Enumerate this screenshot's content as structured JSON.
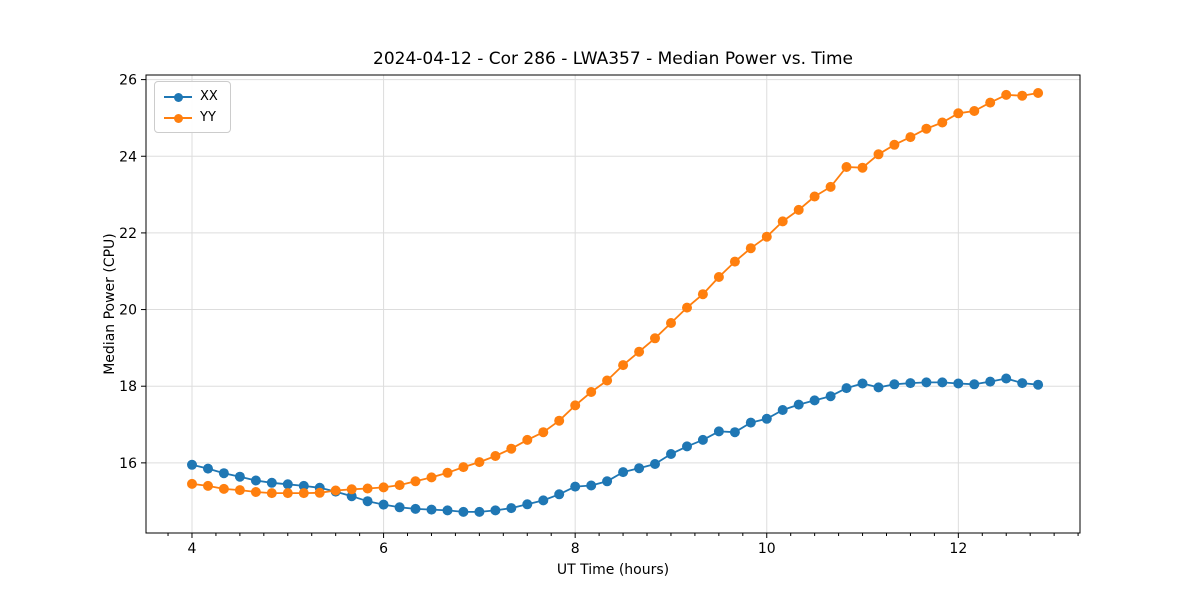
{
  "chart_data": {
    "type": "line",
    "title": "2024-04-12 - Cor 286 - LWA357 - Median Power vs. Time",
    "xlabel": "UT Time (hours)",
    "ylabel": "Median Power (CPU)",
    "xlim": [
      3.52,
      13.27
    ],
    "ylim": [
      14.17,
      26.12
    ],
    "xticks": [
      4,
      6,
      8,
      10,
      12
    ],
    "yticks": [
      16,
      18,
      20,
      22,
      24,
      26
    ],
    "x_minor_step": 0.25,
    "grid": true,
    "legend_position": "upper left",
    "background_color": "#ffffff",
    "grid_color": "#dddddd",
    "spine_color": "#000000",
    "x": [
      4.0,
      4.167,
      4.333,
      4.5,
      4.667,
      4.833,
      5.0,
      5.167,
      5.333,
      5.5,
      5.667,
      5.833,
      6.0,
      6.167,
      6.333,
      6.5,
      6.667,
      6.833,
      7.0,
      7.167,
      7.333,
      7.5,
      7.667,
      7.833,
      8.0,
      8.167,
      8.333,
      8.5,
      8.667,
      8.833,
      9.0,
      9.167,
      9.333,
      9.5,
      9.667,
      9.833,
      10.0,
      10.167,
      10.333,
      10.5,
      10.667,
      10.833,
      11.0,
      11.167,
      11.333,
      11.5,
      11.667,
      11.833,
      12.0,
      12.167,
      12.333,
      12.5,
      12.667,
      12.833
    ],
    "series": [
      {
        "name": "XX",
        "color": "#1f77b4",
        "values": [
          15.95,
          15.85,
          15.73,
          15.64,
          15.54,
          15.48,
          15.44,
          15.4,
          15.35,
          15.25,
          15.13,
          15.0,
          14.91,
          14.84,
          14.8,
          14.78,
          14.76,
          14.72,
          14.72,
          14.76,
          14.82,
          14.92,
          15.02,
          15.18,
          15.38,
          15.41,
          15.52,
          15.76,
          15.86,
          15.97,
          16.23,
          16.43,
          16.6,
          16.82,
          16.8,
          17.05,
          17.15,
          17.38,
          17.52,
          17.63,
          17.74,
          17.95,
          18.07,
          17.97,
          18.05,
          18.08,
          18.1,
          18.1,
          18.07,
          18.05,
          18.12,
          18.2,
          18.08,
          18.04
        ]
      },
      {
        "name": "YY",
        "color": "#ff7f0e",
        "values": [
          15.45,
          15.4,
          15.32,
          15.29,
          15.24,
          15.21,
          15.21,
          15.21,
          15.22,
          15.28,
          15.31,
          15.33,
          15.36,
          15.42,
          15.52,
          15.62,
          15.74,
          15.89,
          16.02,
          16.18,
          16.37,
          16.6,
          16.8,
          17.1,
          17.5,
          17.85,
          18.15,
          18.55,
          18.9,
          19.25,
          19.65,
          20.05,
          20.4,
          20.85,
          21.25,
          21.6,
          21.9,
          22.3,
          22.6,
          22.95,
          23.2,
          23.72,
          23.7,
          24.05,
          24.3,
          24.5,
          24.72,
          24.88,
          25.12,
          25.18,
          25.4,
          25.6,
          25.58,
          25.65
        ]
      }
    ]
  }
}
